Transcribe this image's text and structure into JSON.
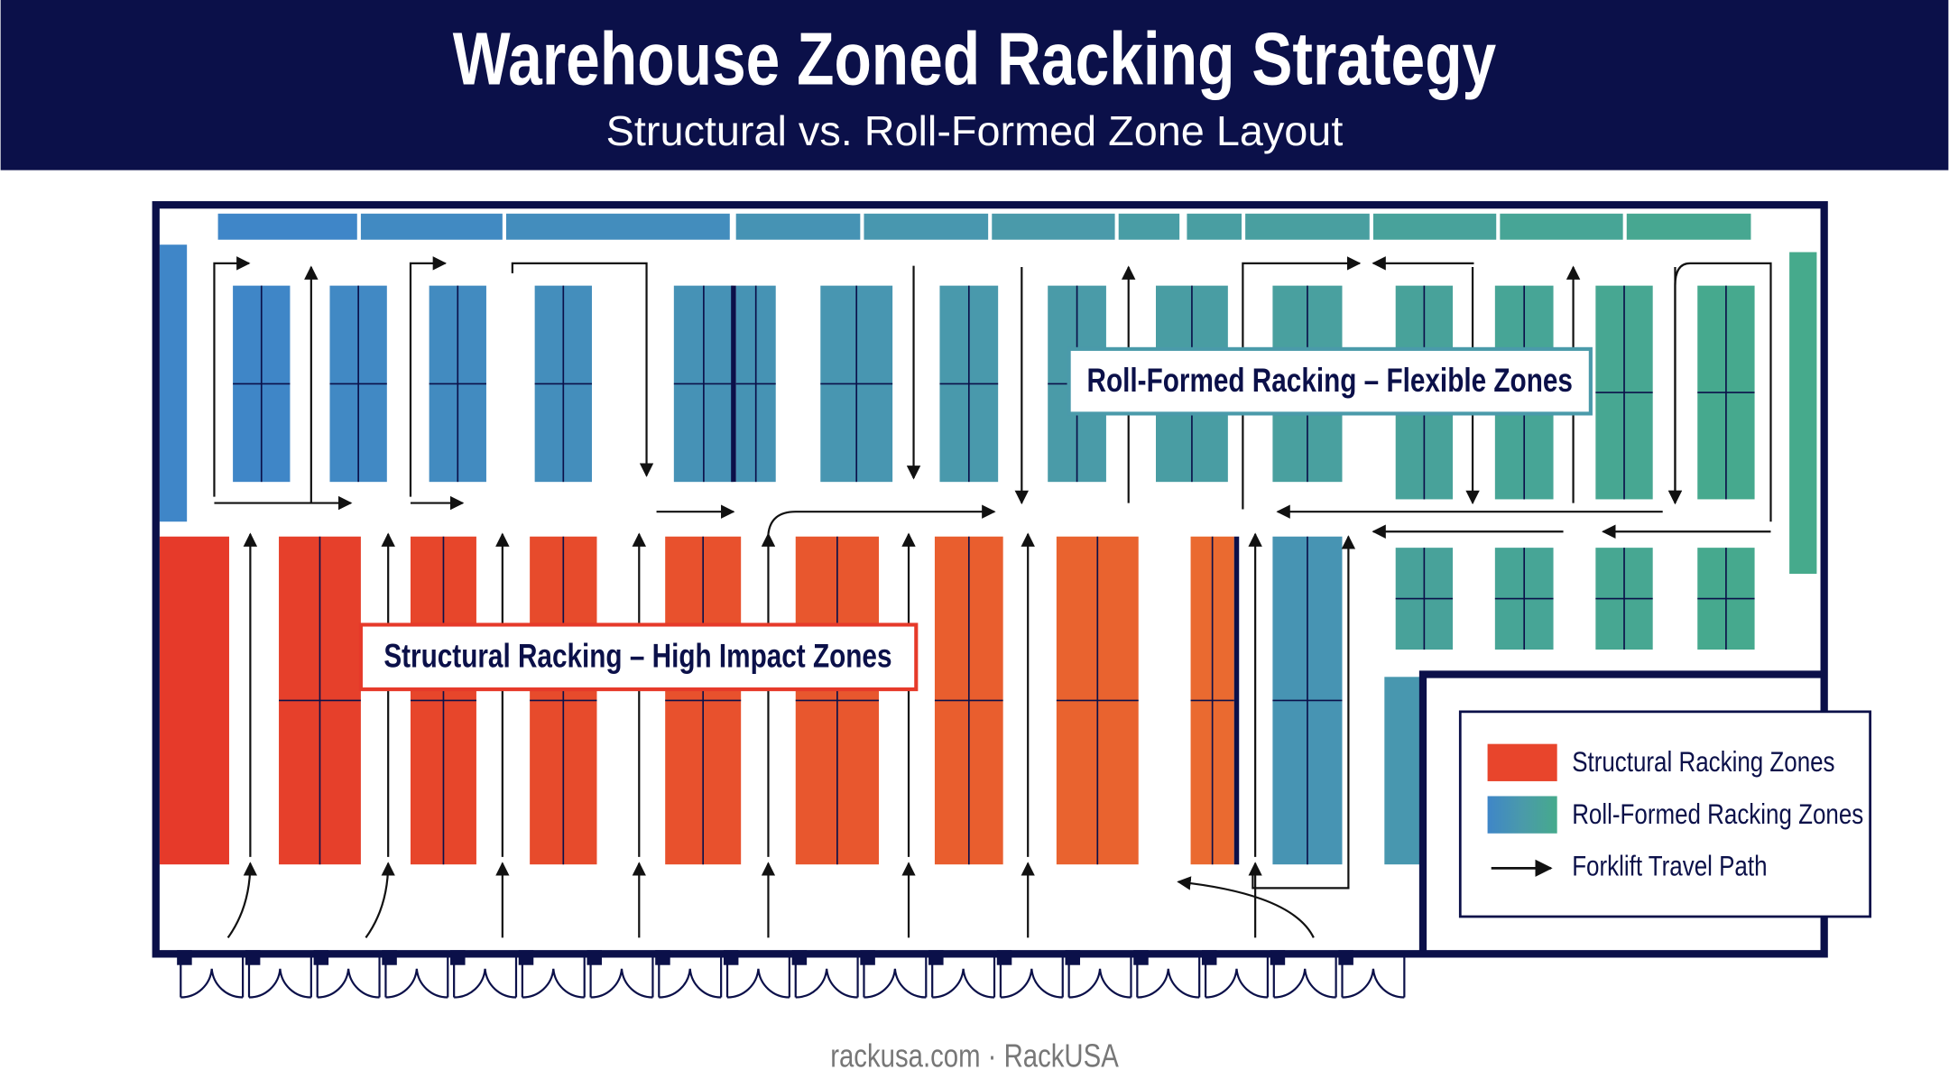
{
  "header": {
    "title": "Warehouse Zoned Racking Strategy",
    "subtitle": "Structural vs. Roll-Formed Zone Layout"
  },
  "zones": {
    "roll_formed_label": "Roll-Formed Racking – Flexible Zones",
    "structural_label": "Structural Racking – High Impact Zones"
  },
  "legend": {
    "items": [
      "Structural Racking Zones",
      "Roll-Formed Racking Zones",
      "Forklift Travel Path"
    ]
  },
  "footer": "rackusa.com · RackUSA"
}
